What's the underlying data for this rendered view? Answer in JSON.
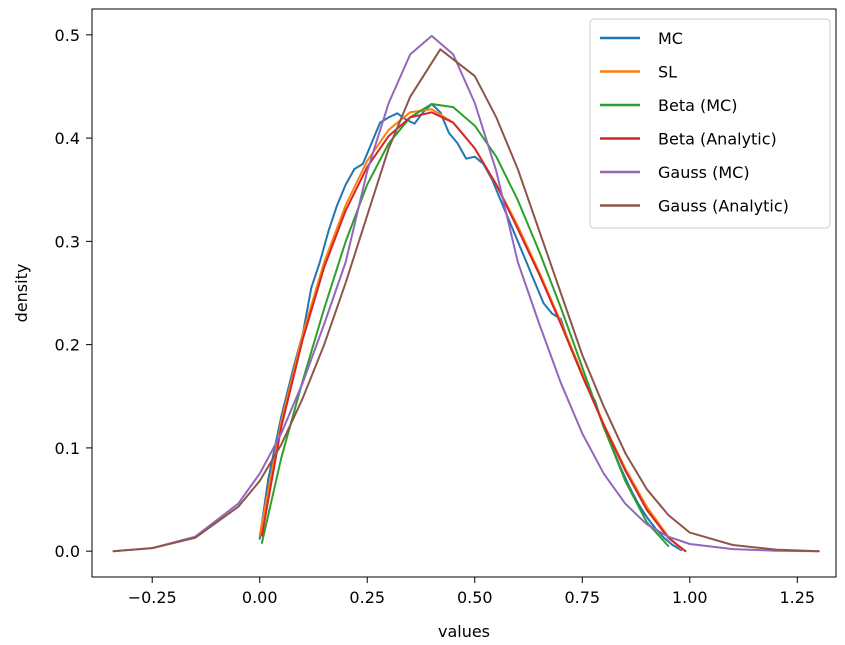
{
  "chart_data": {
    "type": "line",
    "title": "",
    "xlabel": "values",
    "ylabel": "density",
    "xlim": [
      -0.39,
      1.34
    ],
    "ylim": [
      -0.025,
      0.525
    ],
    "xticks": [
      -0.25,
      0.0,
      0.25,
      0.5,
      0.75,
      1.0,
      1.25
    ],
    "xtick_labels": [
      "−0.25",
      "0.00",
      "0.25",
      "0.50",
      "0.75",
      "1.00",
      "1.25"
    ],
    "yticks": [
      0.0,
      0.1,
      0.2,
      0.3,
      0.4,
      0.5
    ],
    "ytick_labels": [
      "0.0",
      "0.1",
      "0.2",
      "0.3",
      "0.4",
      "0.5"
    ],
    "grid": false,
    "legend_position": "top-right",
    "series": [
      {
        "name": "MC",
        "color": "#1f77b4",
        "x": [
          0.0,
          0.02,
          0.05,
          0.08,
          0.1,
          0.12,
          0.14,
          0.16,
          0.18,
          0.2,
          0.22,
          0.24,
          0.26,
          0.28,
          0.3,
          0.32,
          0.34,
          0.36,
          0.38,
          0.4,
          0.42,
          0.44,
          0.46,
          0.48,
          0.5,
          0.52,
          0.54,
          0.56,
          0.58,
          0.6,
          0.62,
          0.64,
          0.66,
          0.68,
          0.7,
          0.72,
          0.74,
          0.76,
          0.78,
          0.8,
          0.82,
          0.84,
          0.86,
          0.88,
          0.9,
          0.92,
          0.94,
          0.96,
          0.98
        ],
        "y": [
          0.012,
          0.07,
          0.13,
          0.18,
          0.21,
          0.255,
          0.28,
          0.31,
          0.335,
          0.355,
          0.37,
          0.375,
          0.395,
          0.415,
          0.42,
          0.424,
          0.418,
          0.414,
          0.425,
          0.433,
          0.425,
          0.405,
          0.395,
          0.38,
          0.382,
          0.375,
          0.36,
          0.34,
          0.32,
          0.3,
          0.28,
          0.26,
          0.24,
          0.23,
          0.225,
          0.2,
          0.18,
          0.16,
          0.145,
          0.12,
          0.1,
          0.08,
          0.062,
          0.046,
          0.033,
          0.022,
          0.013,
          0.006,
          0.001
        ]
      },
      {
        "name": "SL",
        "color": "#ff7f0e",
        "x": [
          0.0,
          0.05,
          0.1,
          0.15,
          0.2,
          0.25,
          0.3,
          0.35,
          0.4,
          0.45,
          0.5,
          0.55,
          0.6,
          0.65,
          0.7,
          0.75,
          0.8,
          0.85,
          0.9,
          0.95,
          0.98
        ],
        "y": [
          0.015,
          0.125,
          0.21,
          0.28,
          0.335,
          0.378,
          0.408,
          0.425,
          0.428,
          0.415,
          0.39,
          0.355,
          0.315,
          0.27,
          0.222,
          0.172,
          0.123,
          0.08,
          0.043,
          0.014,
          0.002
        ]
      },
      {
        "name": "Beta (MC)",
        "color": "#2ca02c",
        "x": [
          0.005,
          0.05,
          0.1,
          0.15,
          0.2,
          0.25,
          0.3,
          0.35,
          0.4,
          0.45,
          0.5,
          0.55,
          0.6,
          0.65,
          0.7,
          0.75,
          0.8,
          0.85,
          0.9,
          0.95
        ],
        "y": [
          0.008,
          0.09,
          0.165,
          0.235,
          0.3,
          0.355,
          0.395,
          0.42,
          0.433,
          0.43,
          0.412,
          0.382,
          0.34,
          0.29,
          0.236,
          0.178,
          0.12,
          0.068,
          0.028,
          0.005
        ]
      },
      {
        "name": "Beta (Analytic)",
        "color": "#d62728",
        "x": [
          0.005,
          0.05,
          0.1,
          0.15,
          0.2,
          0.25,
          0.3,
          0.35,
          0.4,
          0.45,
          0.5,
          0.55,
          0.6,
          0.65,
          0.7,
          0.75,
          0.8,
          0.85,
          0.9,
          0.95,
          0.99
        ],
        "y": [
          0.015,
          0.12,
          0.205,
          0.275,
          0.33,
          0.372,
          0.402,
          0.42,
          0.425,
          0.415,
          0.39,
          0.355,
          0.312,
          0.268,
          0.22,
          0.17,
          0.122,
          0.078,
          0.04,
          0.013,
          0.0
        ]
      },
      {
        "name": "Gauss (MC)",
        "color": "#9467bd",
        "x": [
          -0.34,
          -0.25,
          -0.15,
          -0.05,
          0.0,
          0.05,
          0.1,
          0.15,
          0.2,
          0.25,
          0.3,
          0.35,
          0.4,
          0.45,
          0.5,
          0.55,
          0.6,
          0.65,
          0.7,
          0.75,
          0.8,
          0.85,
          0.9,
          0.95,
          1.0,
          1.1,
          1.2,
          1.3
        ],
        "y": [
          0.0,
          0.003,
          0.014,
          0.046,
          0.075,
          0.114,
          0.163,
          0.22,
          0.28,
          0.368,
          0.434,
          0.481,
          0.499,
          0.481,
          0.434,
          0.368,
          0.28,
          0.22,
          0.163,
          0.114,
          0.075,
          0.046,
          0.026,
          0.014,
          0.007,
          0.002,
          0.0005,
          0.0
        ]
      },
      {
        "name": "Gauss (Analytic)",
        "color": "#8c564b",
        "x": [
          -0.34,
          -0.25,
          -0.15,
          -0.05,
          0.0,
          0.05,
          0.1,
          0.15,
          0.2,
          0.25,
          0.3,
          0.35,
          0.42,
          0.5,
          0.55,
          0.6,
          0.65,
          0.7,
          0.75,
          0.8,
          0.85,
          0.9,
          0.95,
          1.0,
          1.1,
          1.2,
          1.3
        ],
        "y": [
          0.0,
          0.003,
          0.013,
          0.043,
          0.068,
          0.103,
          0.148,
          0.2,
          0.26,
          0.325,
          0.39,
          0.44,
          0.486,
          0.46,
          0.42,
          0.37,
          0.31,
          0.25,
          0.19,
          0.14,
          0.095,
          0.06,
          0.035,
          0.018,
          0.006,
          0.0015,
          0.0
        ]
      }
    ]
  }
}
